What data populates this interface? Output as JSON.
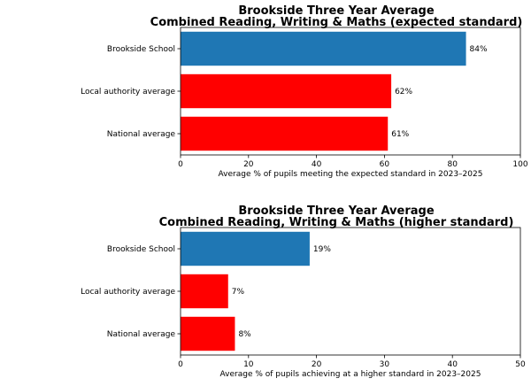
{
  "chart_data": [
    {
      "type": "bar",
      "orientation": "horizontal",
      "title": "Brookside Three Year Average\nCombined Reading, Writing & Maths (expected standard)",
      "title_lines": [
        "Brookside Three Year Average",
        "Combined Reading, Writing & Maths (expected standard)"
      ],
      "categories": [
        "Brookside School",
        "Local authority average",
        "National average"
      ],
      "values": [
        84,
        62,
        61
      ],
      "value_labels": [
        "84%",
        "62%",
        "61%"
      ],
      "colors": [
        "#1f77b4",
        "#ff0000",
        "#ff0000"
      ],
      "xlabel": "Average % of pupils meeting the expected standard in 2023–2025",
      "ylabel": "",
      "xlim": [
        0,
        100
      ],
      "xticks": [
        0,
        20,
        40,
        60,
        80,
        100
      ],
      "grid": false,
      "legend": "none"
    },
    {
      "type": "bar",
      "orientation": "horizontal",
      "title": "Brookside Three Year Average\nCombined Reading, Writing & Maths (higher standard)",
      "title_lines": [
        "Brookside Three Year Average",
        "Combined Reading, Writing & Maths (higher standard)"
      ],
      "categories": [
        "Brookside School",
        "Local authority average",
        "National average"
      ],
      "values": [
        19,
        7,
        8
      ],
      "value_labels": [
        "19%",
        "7%",
        "8%"
      ],
      "colors": [
        "#1f77b4",
        "#ff0000",
        "#ff0000"
      ],
      "xlabel": "Average % of pupils achieving at a higher standard in 2023–2025",
      "ylabel": "",
      "xlim": [
        0,
        50
      ],
      "xticks": [
        0,
        10,
        20,
        30,
        40,
        50
      ],
      "grid": false,
      "legend": "none"
    }
  ]
}
